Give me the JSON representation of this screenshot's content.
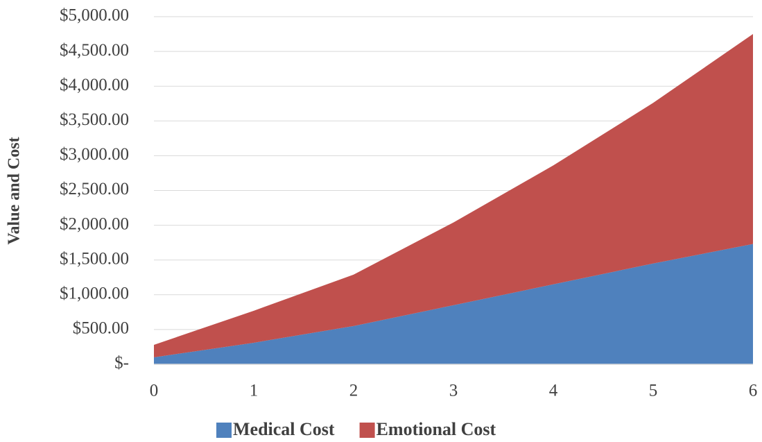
{
  "chart_data": {
    "type": "area",
    "stacked": true,
    "y_label": "Value and Cost",
    "x": [
      0,
      1,
      2,
      3,
      4,
      5,
      6
    ],
    "xlim": [
      0,
      6
    ],
    "xticks": [
      0,
      1,
      2,
      3,
      4,
      5,
      6
    ],
    "ylim": [
      0,
      5000
    ],
    "yticks": [
      {
        "value": 0,
        "label": "$-"
      },
      {
        "value": 500,
        "label": "$500.00"
      },
      {
        "value": 1000,
        "label": "$1,000.00"
      },
      {
        "value": 1500,
        "label": "$1,500.00"
      },
      {
        "value": 2000,
        "label": "$2,000.00"
      },
      {
        "value": 2500,
        "label": "$2,500.00"
      },
      {
        "value": 3000,
        "label": "$3,000.00"
      },
      {
        "value": 3500,
        "label": "$3,500.00"
      },
      {
        "value": 4000,
        "label": "$4,000.00"
      },
      {
        "value": 4500,
        "label": "$4,500.00"
      },
      {
        "value": 5000,
        "label": "$5,000.00"
      }
    ],
    "grid": true,
    "legend": "bottom",
    "series": [
      {
        "name": "Medical Cost",
        "color": "#4f81bd",
        "values": [
          100,
          310,
          550,
          850,
          1150,
          1450,
          1730
        ]
      },
      {
        "name": "Emotional Cost",
        "color": "#c0504d",
        "values": [
          180,
          460,
          740,
          1190,
          1710,
          2310,
          3020
        ]
      }
    ]
  }
}
